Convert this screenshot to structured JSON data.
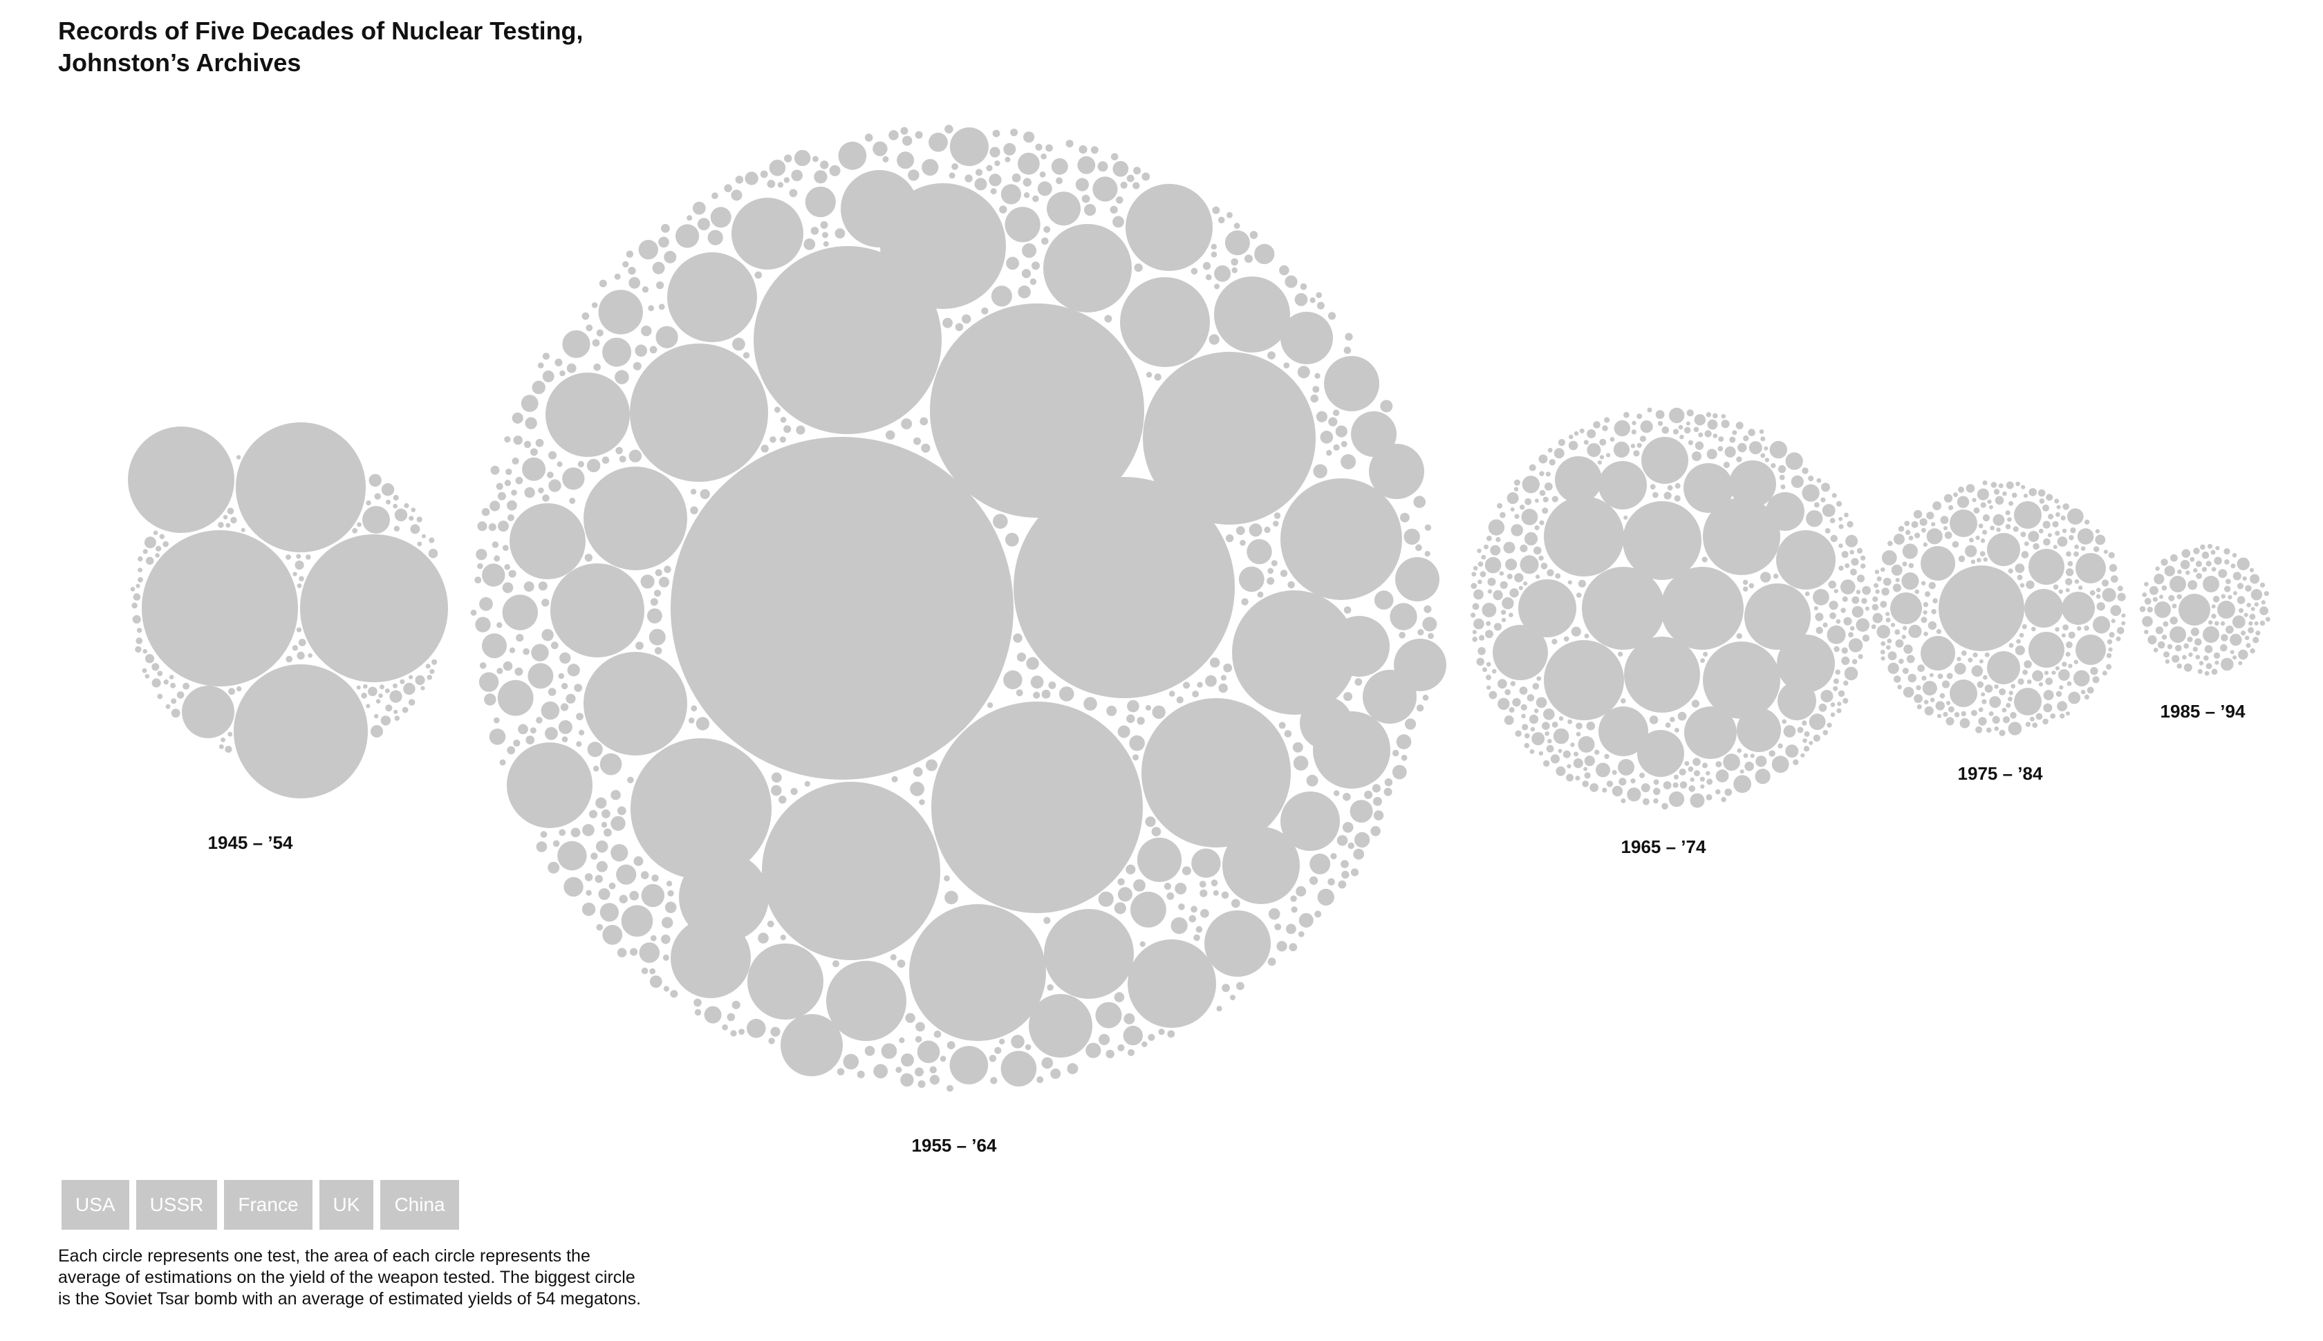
{
  "title_lines": [
    "Records of Five Decades of Nuclear Testing,",
    "Johnston’s Archives"
  ],
  "chart_data": {
    "type": "packed-circles",
    "encoding": "Each circle is one test; circle area = average estimated yield",
    "groups": [
      {
        "label": "1945 – ’54"
      },
      {
        "label": "1955 – ’64"
      },
      {
        "label": "1965 – ’74"
      },
      {
        "label": "1975 – ’84"
      },
      {
        "label": "1985 – ’94"
      }
    ],
    "largest_test": {
      "name": "Soviet Tsar bomb",
      "yield_megatons": 54
    }
  },
  "buttons": [
    "USA",
    "USSR",
    "France",
    "UK",
    "China"
  ],
  "note_lines": [
    "Each circle represents one test, the area of each circle represents the",
    "average of estimations on the yield of the weapon tested. The biggest circle",
    "is the Soviet Tsar bomb with an average of estimated yields of 54 megatons."
  ],
  "colors": {
    "circle": "#c8c8c8",
    "button": "#c8c8c8",
    "button_text": "#ffffff",
    "text": "#111111"
  }
}
